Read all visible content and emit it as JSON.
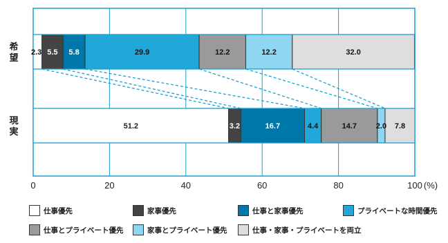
{
  "chart_data": {
    "type": "bar",
    "orientation": "horizontal-stacked",
    "title": "",
    "xlabel": "",
    "x_unit": "(%)",
    "xlim": [
      0,
      100
    ],
    "xticks": [
      0,
      20,
      40,
      60,
      80,
      100
    ],
    "rows": [
      {
        "label": "希望",
        "values": [
          2.3,
          5.5,
          5.8,
          29.9,
          12.2,
          12.2,
          32.0
        ],
        "value_labels": [
          "2.3",
          "5.5",
          "5.8",
          "29.9",
          "12.2",
          "12.2",
          "32.0"
        ]
      },
      {
        "label": "現実",
        "values": [
          51.2,
          3.2,
          16.7,
          4.4,
          14.7,
          2.0,
          7.8
        ],
        "value_labels": [
          "51.2",
          "3.2",
          "16.7",
          "4.4",
          "14.7",
          "2.0",
          "7.8"
        ]
      }
    ],
    "series": [
      {
        "name": "仕事優先",
        "color": "#ffffff",
        "text_color": "#222222"
      },
      {
        "name": "家事優先",
        "color": "#444444",
        "text_color": "#ffffff"
      },
      {
        "name": "仕事と家事優先",
        "color": "#0077aa",
        "text_color": "#ffffff"
      },
      {
        "name": "プライベートな時間優先",
        "color": "#22a8d8",
        "text_color": "#111111"
      },
      {
        "name": "仕事とプライベート優先",
        "color": "#9a9a9a",
        "text_color": "#111111"
      },
      {
        "name": "家事とプライベート優先",
        "color": "#8fd6f2",
        "text_color": "#111111"
      },
      {
        "name": "仕事・家事・プライベートを両立",
        "color": "#dedede",
        "text_color": "#111111"
      }
    ],
    "legend_position": "bottom",
    "grid": true,
    "connector_lines": "dashed"
  }
}
